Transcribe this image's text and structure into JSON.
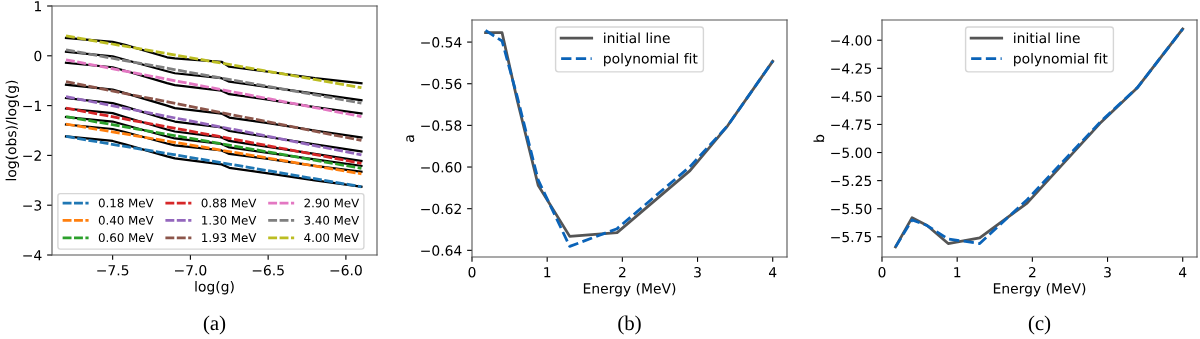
{
  "chart_data": [
    {
      "type": "line",
      "xlabel": "log(g)",
      "ylabel": "log(obs)/log(g)",
      "xlim": [
        -7.89,
        -5.8
      ],
      "ylim": [
        -4,
        1
      ],
      "xticks": [
        {
          "value": -7.5,
          "label": "−7.5"
        },
        {
          "value": -7.0,
          "label": "−7.0"
        },
        {
          "value": -6.5,
          "label": "−6.5"
        },
        {
          "value": -6.0,
          "label": "−6.0"
        }
      ],
      "yticks": [
        1,
        0,
        {
          "value": -1,
          "label": "−1"
        },
        {
          "value": -2,
          "label": "−2"
        },
        {
          "value": -3,
          "label": "−3"
        },
        {
          "value": -4,
          "label": "−4"
        }
      ],
      "grid": false,
      "legend": "bottom left",
      "marker": "none",
      "annotations": [
        "(a)"
      ],
      "series": [
        {
          "name": "0.18 MeV",
          "color": "#1f77b4",
          "line_style": "dashed",
          "x": [
            -7.8,
            -6.85,
            -5.9
          ],
          "values": [
            -1.62,
            -2.12,
            -2.63
          ]
        },
        {
          "name": "0.40 MeV",
          "color": "#ff7f0e",
          "line_style": "dashed",
          "x": [
            -7.8,
            -6.85,
            -5.9
          ],
          "values": [
            -1.37,
            -1.87,
            -2.37
          ]
        },
        {
          "name": "0.60 MeV",
          "color": "#2ca02c",
          "line_style": "dashed",
          "x": [
            -7.8,
            -6.85,
            -5.9
          ],
          "values": [
            -1.22,
            -1.74,
            -2.26
          ]
        },
        {
          "name": "0.88 MeV",
          "color": "#d62728",
          "line_style": "dashed",
          "x": [
            -7.8,
            -6.85,
            -5.9
          ],
          "values": [
            -1.05,
            -1.6,
            -2.16
          ]
        },
        {
          "name": "1.30 MeV",
          "color": "#9467bd",
          "line_style": "dashed",
          "x": [
            -7.8,
            -6.85,
            -5.9
          ],
          "values": [
            -0.82,
            -1.4,
            -1.99
          ]
        },
        {
          "name": "1.93 MeV",
          "color": "#8c564b",
          "line_style": "dashed",
          "x": [
            -7.8,
            -6.85,
            -5.9
          ],
          "values": [
            -0.52,
            -1.11,
            -1.7
          ]
        },
        {
          "name": "2.90 MeV",
          "color": "#e377c2",
          "line_style": "dashed",
          "x": [
            -7.8,
            -6.85,
            -5.9
          ],
          "values": [
            -0.08,
            -0.65,
            -1.22
          ]
        },
        {
          "name": "3.40 MeV",
          "color": "#7f7f7f",
          "line_style": "dashed",
          "x": [
            -7.8,
            -6.85,
            -5.9
          ],
          "values": [
            0.12,
            -0.42,
            -0.95
          ]
        },
        {
          "name": "4.00 MeV",
          "color": "#bcbd22",
          "line_style": "dashed",
          "x": [
            -7.8,
            -6.85,
            -5.9
          ],
          "values": [
            0.4,
            -0.12,
            -0.64
          ]
        },
        {
          "color": "#000000",
          "line_style": "solid",
          "x": [
            -7.8,
            -7.5,
            -7.42,
            -7.15,
            -7.1,
            -6.8,
            -6.75,
            -6.5,
            -6.2,
            -5.9
          ],
          "values": [
            -1.62,
            -1.71,
            -1.78,
            -2.02,
            -2.06,
            -2.18,
            -2.25,
            -2.36,
            -2.5,
            -2.63
          ]
        },
        {
          "color": "#000000",
          "line_style": "solid",
          "x": [
            -7.8,
            -7.5,
            -7.42,
            -7.15,
            -7.1,
            -6.8,
            -6.75,
            -6.5,
            -6.2,
            -5.9
          ],
          "values": [
            -1.38,
            -1.47,
            -1.53,
            -1.76,
            -1.8,
            -1.9,
            -1.97,
            -2.07,
            -2.21,
            -2.33
          ]
        },
        {
          "color": "#000000",
          "line_style": "solid",
          "x": [
            -7.8,
            -7.5,
            -7.42,
            -7.15,
            -7.1,
            -6.8,
            -6.75,
            -6.5,
            -6.2,
            -5.9
          ],
          "values": [
            -1.23,
            -1.32,
            -1.39,
            -1.62,
            -1.66,
            -1.77,
            -1.84,
            -1.95,
            -2.08,
            -2.21
          ]
        },
        {
          "color": "#000000",
          "line_style": "solid",
          "x": [
            -7.8,
            -7.5,
            -7.42,
            -7.15,
            -7.1,
            -6.8,
            -6.75,
            -6.5,
            -6.2,
            -5.9
          ],
          "values": [
            -1.06,
            -1.15,
            -1.23,
            -1.48,
            -1.52,
            -1.64,
            -1.71,
            -1.83,
            -1.97,
            -2.11
          ]
        },
        {
          "color": "#000000",
          "line_style": "solid",
          "x": [
            -7.8,
            -7.5,
            -7.42,
            -7.15,
            -7.1,
            -6.8,
            -6.75,
            -6.5,
            -6.2,
            -5.9
          ],
          "values": [
            -0.85,
            -0.95,
            -1.02,
            -1.28,
            -1.32,
            -1.44,
            -1.51,
            -1.63,
            -1.78,
            -1.92
          ]
        },
        {
          "color": "#000000",
          "line_style": "solid",
          "x": [
            -7.8,
            -7.5,
            -7.42,
            -7.15,
            -7.1,
            -6.8,
            -6.75,
            -6.5,
            -6.2,
            -5.9
          ],
          "values": [
            -0.58,
            -0.68,
            -0.75,
            -1.0,
            -1.05,
            -1.16,
            -1.24,
            -1.35,
            -1.5,
            -1.64
          ]
        },
        {
          "color": "#000000",
          "line_style": "solid",
          "x": [
            -7.8,
            -7.5,
            -7.42,
            -7.15,
            -7.1,
            -6.8,
            -6.75,
            -6.5,
            -6.2,
            -5.9
          ],
          "values": [
            -0.14,
            -0.23,
            -0.3,
            -0.55,
            -0.59,
            -0.7,
            -0.77,
            -0.88,
            -1.03,
            -1.16
          ]
        },
        {
          "color": "#000000",
          "line_style": "solid",
          "x": [
            -7.8,
            -7.5,
            -7.42,
            -7.15,
            -7.1,
            -6.8,
            -6.75,
            -6.5,
            -6.2,
            -5.9
          ],
          "values": [
            0.08,
            -0.01,
            -0.08,
            -0.31,
            -0.35,
            -0.45,
            -0.52,
            -0.63,
            -0.76,
            -0.89
          ]
        },
        {
          "color": "#000000",
          "line_style": "solid",
          "x": [
            -7.8,
            -7.5,
            -7.42,
            -7.15,
            -7.1,
            -6.8,
            -6.75,
            -6.5,
            -6.2,
            -5.9
          ],
          "values": [
            0.36,
            0.28,
            0.22,
            -0.03,
            -0.05,
            -0.12,
            -0.22,
            -0.32,
            -0.45,
            -0.55
          ]
        }
      ]
    },
    {
      "type": "line",
      "xlabel": "Energy (MeV)",
      "ylabel": "a",
      "xlim": [
        0,
        4.19
      ],
      "ylim": [
        -0.6432,
        -0.5294
      ],
      "xticks": [
        0,
        1,
        2,
        3,
        4
      ],
      "yticks": [
        {
          "value": -0.54,
          "label": "−0.54"
        },
        {
          "value": -0.56,
          "label": "−0.56"
        },
        {
          "value": -0.58,
          "label": "−0.58"
        },
        {
          "value": -0.6,
          "label": "−0.60"
        },
        {
          "value": -0.62,
          "label": "−0.62"
        },
        {
          "value": -0.64,
          "label": "−0.64"
        }
      ],
      "grid": false,
      "legend": "top",
      "marker": "none",
      "annotations": [
        "(b)"
      ],
      "series": [
        {
          "name": "initial line",
          "color": "#555555",
          "line_style": "solid",
          "x": [
            0.18,
            0.4,
            0.6,
            0.88,
            1.3,
            1.93,
            2.9,
            3.4,
            4.0
          ],
          "values": [
            -0.5355,
            -0.5355,
            -0.5677,
            -0.6087,
            -0.6333,
            -0.6315,
            -0.6017,
            -0.5802,
            -0.5492
          ]
        },
        {
          "name": "polynomial fit",
          "color": "#0a63b8",
          "line_style": "dashed",
          "x": [
            0.18,
            0.4,
            0.6,
            0.88,
            1.3,
            1.93,
            2.9,
            3.4,
            4.0
          ],
          "values": [
            -0.5344,
            -0.5395,
            -0.566,
            -0.6062,
            -0.6381,
            -0.6296,
            -0.5998,
            -0.5802,
            -0.5492
          ]
        }
      ]
    },
    {
      "type": "line",
      "xlabel": "Energy (MeV)",
      "ylabel": "b",
      "xlim": [
        0,
        4.19
      ],
      "ylim": [
        -5.93,
        -3.82
      ],
      "xticks": [
        0,
        1,
        2,
        3,
        4
      ],
      "yticks": [
        {
          "value": -4.0,
          "label": "−4.00"
        },
        {
          "value": -4.25,
          "label": "−4.25"
        },
        {
          "value": -4.5,
          "label": "−4.50"
        },
        {
          "value": -4.75,
          "label": "−4.75"
        },
        {
          "value": -5.0,
          "label": "−5.00"
        },
        {
          "value": -5.25,
          "label": "−5.25"
        },
        {
          "value": -5.5,
          "label": "−5.50"
        },
        {
          "value": -5.75,
          "label": "−5.75"
        }
      ],
      "grid": false,
      "legend": "top",
      "marker": "none",
      "annotations": [
        "(c)"
      ],
      "series": [
        {
          "name": "initial line",
          "color": "#555555",
          "line_style": "solid",
          "x": [
            0.18,
            0.4,
            0.6,
            0.88,
            1.3,
            1.93,
            2.9,
            3.4,
            4.0
          ],
          "values": [
            -5.84,
            -5.58,
            -5.65,
            -5.81,
            -5.76,
            -5.45,
            -4.74,
            -4.42,
            -3.9
          ]
        },
        {
          "name": "polynomial fit",
          "color": "#0a63b8",
          "line_style": "dashed",
          "x": [
            0.18,
            0.4,
            0.6,
            0.88,
            1.3,
            1.93,
            2.9,
            3.4,
            4.0
          ],
          "values": [
            -5.84,
            -5.6,
            -5.65,
            -5.77,
            -5.81,
            -5.42,
            -4.73,
            -4.42,
            -3.9
          ]
        }
      ]
    }
  ]
}
